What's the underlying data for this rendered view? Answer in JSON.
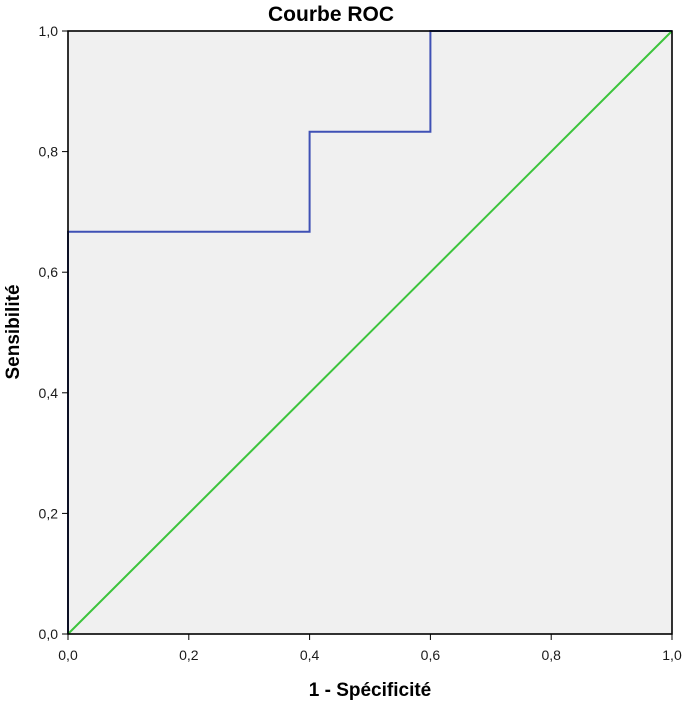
{
  "chart_data": {
    "type": "line",
    "title": "Courbe ROC",
    "xlabel": "1 - Spécificité",
    "ylabel": "Sensibilité",
    "xlim": [
      0,
      1
    ],
    "ylim": [
      0,
      1
    ],
    "xticks": [
      "0,0",
      "0,2",
      "0,4",
      "0,6",
      "0,8",
      "1,0"
    ],
    "yticks": [
      "0,0",
      "0,2",
      "0,4",
      "0,6",
      "0,8",
      "1,0"
    ],
    "xtick_values": [
      0,
      0.2,
      0.4,
      0.6,
      0.8,
      1.0
    ],
    "ytick_values": [
      0,
      0.2,
      0.4,
      0.6,
      0.8,
      1.0
    ],
    "grid": false,
    "series": [
      {
        "x": [
          0,
          0,
          0.4,
          0.4,
          0.6,
          0.6,
          1.0
        ],
        "y": [
          0,
          0.667,
          0.667,
          0.833,
          0.833,
          1.0,
          1.0
        ],
        "color": "#3f51b5",
        "style": "step"
      },
      {
        "x": [
          0,
          1.0
        ],
        "y": [
          0,
          1.0
        ],
        "color": "#3cc43c",
        "style": "reference-diagonal"
      }
    ],
    "colors": {
      "plot_background": "#f0f0f0",
      "frame": "#000000"
    }
  }
}
